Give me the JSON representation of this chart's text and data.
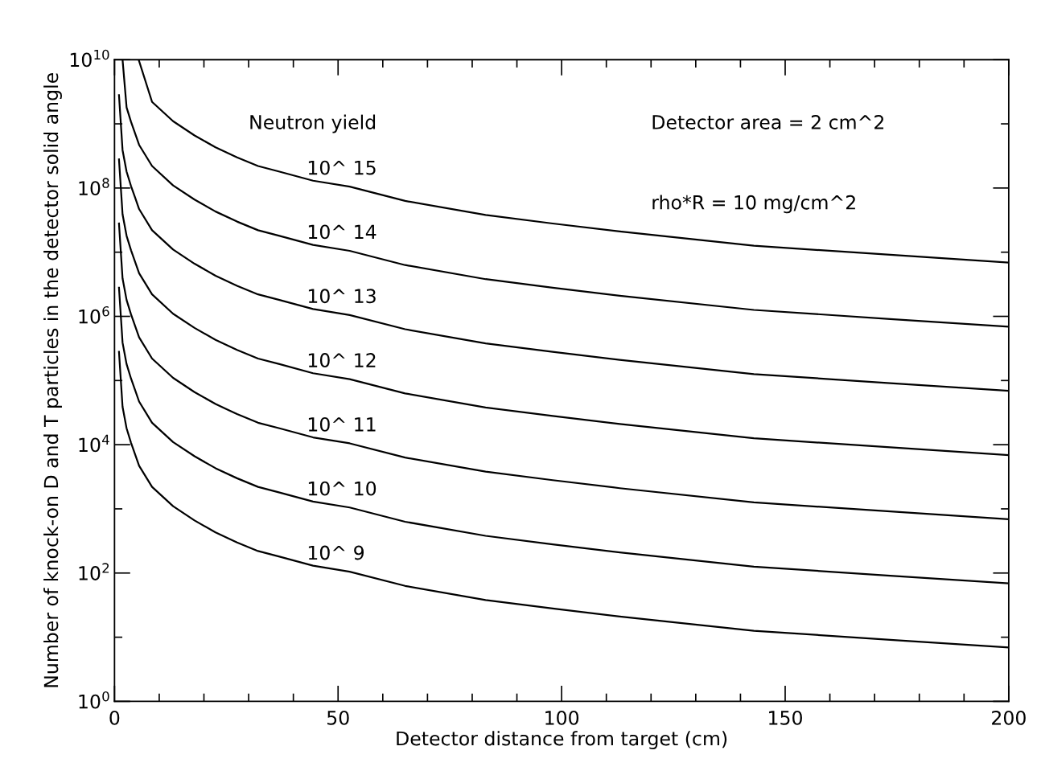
{
  "chart_data": {
    "type": "line",
    "xlabel": "Detector distance from target (cm)",
    "ylabel": "Number of knock-on D and T particles in the detector solid angle",
    "log": "y",
    "xlim": [
      0,
      200
    ],
    "ylim": [
      1,
      10000000000
    ],
    "xticks": [
      0,
      {
        "value": 10,
        "label": null
      },
      {
        "value": 20,
        "label": null
      },
      {
        "value": 30,
        "label": null
      },
      {
        "value": 40,
        "label": null
      },
      50,
      {
        "value": 60,
        "label": null
      },
      {
        "value": 70,
        "label": null
      },
      {
        "value": 80,
        "label": null
      },
      {
        "value": 90,
        "label": null
      },
      100,
      {
        "value": 110,
        "label": null
      },
      {
        "value": 120,
        "label": null
      },
      {
        "value": 130,
        "label": null
      },
      {
        "value": 140,
        "label": null
      },
      150,
      {
        "value": 160,
        "label": null
      },
      {
        "value": 170,
        "label": null
      },
      {
        "value": 180,
        "label": null
      },
      {
        "value": 190,
        "label": null
      },
      200
    ],
    "yticks": [
      {
        "value": 1,
        "label": "10$^{0}$"
      },
      {
        "value": 10,
        "label": null
      },
      {
        "value": 100,
        "label": "10$^{2}$"
      },
      {
        "value": 1000,
        "label": null
      },
      {
        "value": 10000,
        "label": "10$^{4}$"
      },
      {
        "value": 100000,
        "label": null
      },
      {
        "value": 1000000,
        "label": "10$^{6}$"
      },
      {
        "value": 10000000,
        "label": null
      },
      {
        "value": 100000000,
        "label": "10$^{8}$"
      },
      {
        "value": 1000000000,
        "label": null
      },
      {
        "value": 10000000000,
        "label": "10$^{10}$"
      }
    ],
    "grid": false,
    "legend": false,
    "marker": "none",
    "line_style": "solid",
    "annotations": [
      "Neutron yield",
      "Detector area = 2 cm^2",
      "rho*R = 10 mg/cm^2"
    ],
    "x": [
      1.0,
      1.8,
      2.7,
      3.7,
      4.6,
      5.5,
      8.4,
      13.1,
      17.9,
      22.6,
      27.4,
      32.1,
      36.9,
      44.4,
      52.6,
      65,
      83,
      98,
      113,
      143,
      173.5,
      200
    ],
    "series": [
      {
        "name": "10^ 15",
        "color": "#000000",
        "x": [
          5.4,
          8.4,
          13.1,
          17.9,
          22.6,
          27.4,
          32.1,
          36.9,
          44.4,
          52.6,
          65,
          83,
          98,
          113,
          143,
          173.5,
          200
        ],
        "values": [
          10000000000.0,
          2200000000.0,
          1100000000.0,
          660000000.0,
          430000000.0,
          300000000.0,
          220000000.0,
          180000000.0,
          130000000.0,
          105000000.0,
          63000000.0,
          38000000.0,
          28000000.0,
          21000000.0,
          12600000.0,
          9100000.0,
          6900000.0
        ]
      },
      {
        "name": "10^ 14",
        "color": "#000000",
        "x": [
          1.8,
          2.7,
          3.7,
          4.6,
          5.5,
          8.4,
          13.1,
          17.9,
          22.6,
          27.4,
          32.1,
          36.9,
          44.4,
          52.6,
          65,
          83,
          98,
          113,
          143,
          173.5,
          200
        ],
        "values": [
          10000000000.0,
          1800000000.0,
          1070000000.0,
          710000000.0,
          470000000.0,
          220000000.0,
          110000000.0,
          66000000.0,
          43000000.0,
          30000000.0,
          22000000.0,
          18000000.0,
          13000000.0,
          10500000.0,
          6300000.0,
          3800000.0,
          2800000.0,
          2100000.0,
          1260000.0,
          910000.0,
          690000.0
        ]
      },
      {
        "name": "10^ 13",
        "color": "#000000",
        "values": [
          2800000000.0,
          390000000.0,
          180000000.0,
          107000000.0,
          71000000.0,
          47000000.0,
          22000000.0,
          11000000.0,
          6600000.0,
          4300000.0,
          3000000.0,
          2200000.0,
          1800000.0,
          1300000.0,
          1050000.0,
          630000.0,
          380000.0,
          280000.0,
          210000.0,
          126000.0,
          91000.0,
          69000.0
        ]
      },
      {
        "name": "10^ 12",
        "color": "#000000",
        "values": [
          280000000.0,
          39000000.0,
          18000000.0,
          10700000.0,
          7100000.0,
          4700000.0,
          2200000.0,
          1100000.0,
          660000.0,
          430000.0,
          300000.0,
          220000.0,
          180000.0,
          130000.0,
          105000.0,
          63000.0,
          38000.0,
          28000.0,
          21000.0,
          12600.0,
          9100.0,
          6900.0
        ]
      },
      {
        "name": "10^ 11",
        "color": "#000000",
        "values": [
          28000000.0,
          3900000.0,
          1800000.0,
          1070000.0,
          710000.0,
          470000.0,
          220000.0,
          110000.0,
          66000.0,
          43000.0,
          30000.0,
          22000.0,
          18000.0,
          13000.0,
          10500.0,
          6300.0,
          3800.0,
          2800.0,
          2100.0,
          1260,
          910,
          690
        ]
      },
      {
        "name": "10^ 10",
        "color": "#000000",
        "values": [
          2800000.0,
          390000.0,
          180000.0,
          107000.0,
          71000.0,
          47000.0,
          22000.0,
          11000.0,
          6600.0,
          4300.0,
          3000.0,
          2200.0,
          1800.0,
          1300.0,
          1050,
          630,
          380,
          280,
          210,
          126,
          91,
          69
        ]
      },
      {
        "name": "10^ 9",
        "color": "#000000",
        "values": [
          280000.0,
          39000.0,
          18000.0,
          10700.0,
          7100.0,
          4700.0,
          2200.0,
          1100.0,
          660,
          430,
          300,
          220,
          180,
          130,
          105,
          63,
          38,
          28,
          21,
          12.6,
          9.1,
          6.9
        ]
      }
    ]
  }
}
